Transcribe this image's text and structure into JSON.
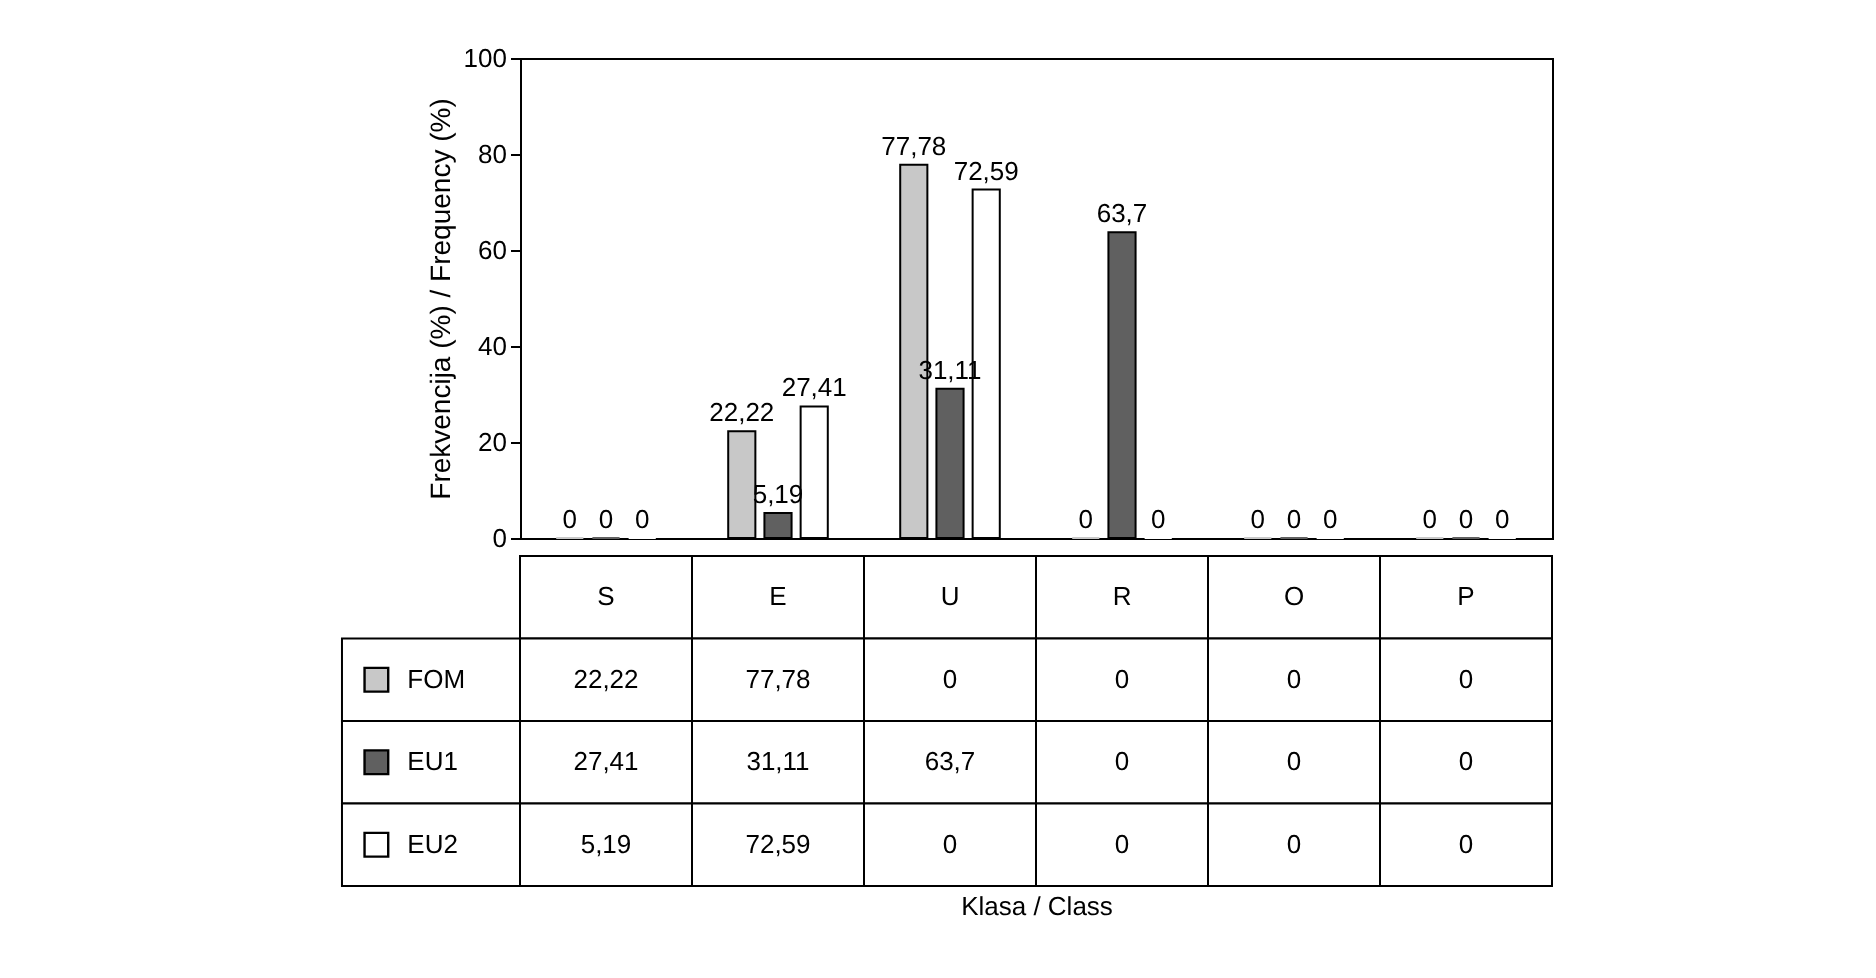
{
  "chart_data": {
    "type": "bar",
    "ylabel": "Frekvencija (%) / Frequency (%)",
    "categories": [
      "S",
      "E",
      "U",
      "R",
      "O",
      "P"
    ],
    "series": [
      {
        "name": "FOM",
        "color": "#c8c8c8",
        "values": [
          0,
          22.22,
          77.78,
          0,
          0,
          0
        ],
        "value_labels": [
          "0",
          "22,22",
          "77,78",
          "0",
          "0",
          "0"
        ]
      },
      {
        "name": "EU1",
        "color": "#606060",
        "values": [
          0,
          5.19,
          31.11,
          63.7,
          0,
          0
        ],
        "value_labels": [
          "0",
          "5,19",
          "31,11",
          "63,7",
          "0",
          "0"
        ]
      },
      {
        "name": "EU2",
        "color": "#ffffff",
        "values": [
          0,
          27.41,
          72.59,
          0,
          0,
          0
        ],
        "value_labels": [
          "0",
          "27,41",
          "72,59",
          "0",
          "0",
          "0"
        ]
      }
    ],
    "ylim": [
      0,
      100
    ],
    "yticks": [
      0,
      20,
      40,
      60,
      80,
      100
    ],
    "grid": false,
    "legend": "bottom left",
    "annotations": [
      "22,22",
      "77,78",
      "0",
      "0",
      "0",
      "0",
      "27,41",
      "31,11",
      "63,7",
      "0",
      "0",
      "0",
      "5,19",
      "72,59",
      "0",
      "0",
      "0",
      "0",
      "Klasa / Class"
    ]
  }
}
